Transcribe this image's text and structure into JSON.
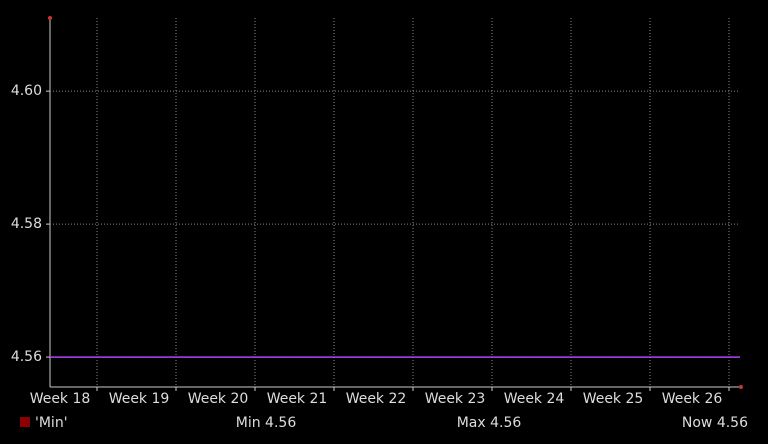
{
  "chart_data": {
    "type": "line",
    "categories": [
      "Week 18",
      "Week 19",
      "Week 20",
      "Week 21",
      "Week 22",
      "Week 23",
      "Week 24",
      "Week 25",
      "Week 26"
    ],
    "series": [
      {
        "name": "'Min'",
        "color": "#8b0000",
        "line_color": "#b040ff",
        "values": [
          4.56,
          4.56,
          4.56,
          4.56,
          4.56,
          4.56,
          4.56,
          4.56,
          4.56
        ]
      }
    ],
    "ylim": [
      4.5555,
      4.611
    ],
    "yticks": [
      4.56,
      4.58,
      {
        "value": 4.6,
        "label": "4.60"
      }
    ],
    "grid": true,
    "stats": [
      "Min 4.56",
      "Max 4.56",
      "Now 4.56"
    ]
  }
}
